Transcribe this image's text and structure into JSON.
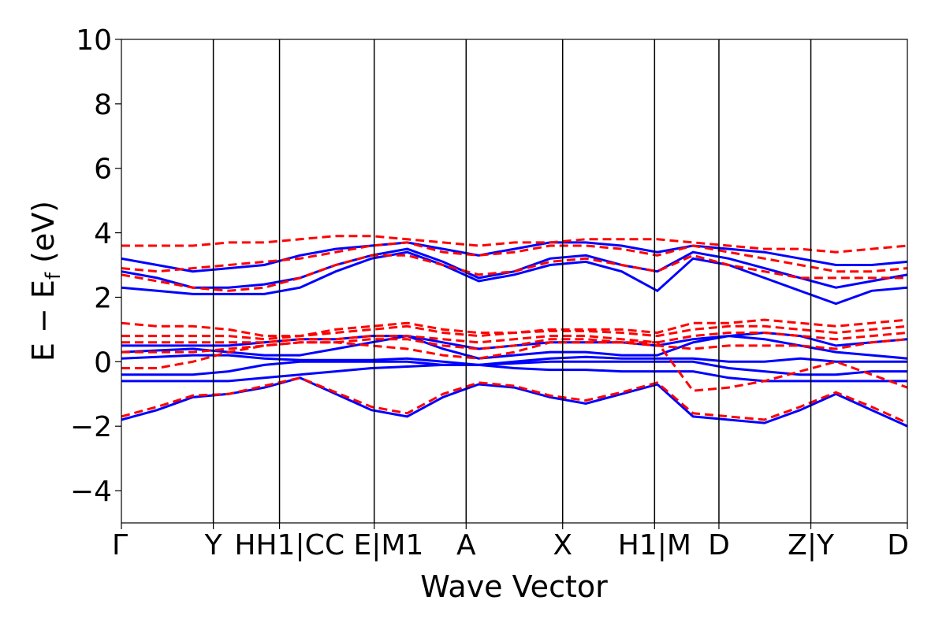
{
  "chart_data": {
    "type": "line",
    "title": "",
    "xlabel": "Wave Vector",
    "ylabel": "E − E_f (eV)",
    "ylabel_parts": {
      "main": "E − E",
      "sub": "f",
      "unit": " (eV)"
    },
    "ylim": [
      -5,
      10
    ],
    "yticks": [
      -4,
      -2,
      0,
      2,
      4,
      6,
      8,
      10
    ],
    "ytick_labels": [
      "−4",
      "−2",
      "0",
      "2",
      "4",
      "6",
      "8",
      "10"
    ],
    "kpath_x": [
      0,
      1.0,
      1.72,
      2.75,
      3.75,
      4.8,
      5.8,
      6.5,
      7.5,
      8.55
    ],
    "kpath_labels": [
      "Γ",
      "Y",
      "HH1|C",
      "C E|M1",
      "A",
      "X",
      "H1|M",
      "D",
      "Z|Y",
      "D"
    ],
    "grid": false,
    "legend": "none",
    "line_styles": {
      "series_a": "solid",
      "series_b": "dashed"
    },
    "colors": {
      "series_a": "#0000ff",
      "series_b": "#ff0000",
      "vlines": "#000000"
    },
    "series": [
      {
        "style": "solid",
        "color": "#0000ff",
        "bands": [
          [
            -1.8,
            -1.5,
            -1.1,
            -1.0,
            -0.8,
            -0.5,
            -1.0,
            -1.5,
            -1.7,
            -1.1,
            -0.7,
            -0.8,
            -1.1,
            -1.3,
            -1.0,
            -0.7,
            -1.7,
            -1.8,
            -1.9,
            -1.5,
            -1.0,
            -1.5,
            -2.0
          ],
          [
            -0.6,
            -0.6,
            -0.6,
            -0.6,
            -0.5,
            -0.4,
            -0.3,
            -0.2,
            -0.15,
            -0.1,
            -0.1,
            -0.2,
            -0.25,
            -0.25,
            -0.3,
            -0.3,
            -0.3,
            -0.5,
            -0.6,
            -0.6,
            -0.6,
            -0.6,
            -0.6
          ],
          [
            -0.4,
            -0.4,
            -0.4,
            -0.3,
            -0.1,
            0.0,
            0.0,
            0.0,
            0.0,
            -0.1,
            -0.1,
            -0.05,
            0.0,
            0.0,
            0.0,
            0.0,
            0.0,
            -0.2,
            -0.3,
            -0.4,
            -0.4,
            -0.3,
            -0.3
          ],
          [
            0.1,
            0.15,
            0.2,
            0.2,
            0.1,
            0.05,
            0.05,
            0.05,
            0.1,
            0.0,
            -0.1,
            0.0,
            0.1,
            0.15,
            0.1,
            0.1,
            0.1,
            0.0,
            0.0,
            0.1,
            0.0,
            0.0,
            0.0
          ],
          [
            0.3,
            0.35,
            0.4,
            0.3,
            0.2,
            0.2,
            0.4,
            0.6,
            0.8,
            0.4,
            0.1,
            0.2,
            0.3,
            0.3,
            0.2,
            0.2,
            0.6,
            0.8,
            0.7,
            0.5,
            0.3,
            0.2,
            0.1
          ],
          [
            0.5,
            0.5,
            0.5,
            0.5,
            0.6,
            0.7,
            0.7,
            0.8,
            0.8,
            0.6,
            0.4,
            0.5,
            0.6,
            0.6,
            0.6,
            0.5,
            0.7,
            0.8,
            0.9,
            0.8,
            0.5,
            0.6,
            0.7
          ],
          [
            2.3,
            2.2,
            2.1,
            2.1,
            2.1,
            2.3,
            2.8,
            3.2,
            3.4,
            3.0,
            2.5,
            2.7,
            3.0,
            3.1,
            2.8,
            2.2,
            3.2,
            3.0,
            2.6,
            2.2,
            1.8,
            2.2,
            2.3
          ],
          [
            2.8,
            2.6,
            2.3,
            2.3,
            2.4,
            2.6,
            3.0,
            3.3,
            3.5,
            3.1,
            2.6,
            2.8,
            3.2,
            3.3,
            3.0,
            2.8,
            3.4,
            3.2,
            2.9,
            2.6,
            2.3,
            2.5,
            2.7
          ],
          [
            3.2,
            3.0,
            2.8,
            2.9,
            3.0,
            3.3,
            3.5,
            3.6,
            3.7,
            3.5,
            3.3,
            3.5,
            3.7,
            3.7,
            3.6,
            3.4,
            3.6,
            3.5,
            3.4,
            3.2,
            3.0,
            3.0,
            3.1
          ]
        ]
      },
      {
        "style": "dashed",
        "color": "#ff0000",
        "bands": [
          [
            -1.7,
            -1.4,
            -1.05,
            -1.0,
            -0.75,
            -0.5,
            -0.95,
            -1.4,
            -1.6,
            -1.0,
            -0.65,
            -0.75,
            -1.05,
            -1.2,
            -0.95,
            -0.65,
            -1.6,
            -1.7,
            -1.8,
            -1.4,
            -0.95,
            -1.4,
            -1.9
          ],
          [
            -0.2,
            -0.2,
            0.0,
            0.3,
            0.5,
            0.6,
            0.6,
            0.5,
            0.4,
            0.2,
            0.1,
            0.3,
            0.6,
            0.6,
            0.6,
            0.6,
            -0.9,
            -0.8,
            -0.6,
            -0.3,
            0.0,
            -0.4,
            -0.8
          ],
          [
            0.3,
            0.3,
            0.3,
            0.4,
            0.5,
            0.6,
            0.6,
            0.7,
            0.7,
            0.5,
            0.4,
            0.5,
            0.7,
            0.7,
            0.6,
            0.5,
            0.4,
            0.5,
            0.5,
            0.5,
            0.4,
            0.6,
            0.7
          ],
          [
            0.6,
            0.6,
            0.6,
            0.6,
            0.6,
            0.7,
            0.7,
            0.8,
            0.8,
            0.7,
            0.6,
            0.7,
            0.8,
            0.8,
            0.7,
            0.6,
            0.8,
            0.9,
            0.9,
            0.8,
            0.7,
            0.8,
            0.9
          ],
          [
            0.8,
            0.8,
            0.8,
            0.8,
            0.7,
            0.8,
            0.9,
            1.0,
            1.1,
            0.9,
            0.8,
            0.9,
            0.95,
            0.95,
            0.9,
            0.8,
            1.0,
            1.1,
            1.1,
            1.0,
            0.9,
            1.0,
            1.1
          ],
          [
            1.2,
            1.1,
            1.1,
            1.0,
            0.8,
            0.8,
            1.0,
            1.1,
            1.2,
            1.0,
            0.9,
            0.9,
            1.0,
            1.0,
            1.0,
            0.9,
            1.2,
            1.2,
            1.3,
            1.2,
            1.1,
            1.2,
            1.3
          ],
          [
            2.7,
            2.5,
            2.3,
            2.2,
            2.3,
            2.6,
            3.0,
            3.3,
            3.3,
            3.0,
            2.7,
            2.8,
            3.1,
            3.2,
            3.0,
            2.8,
            3.3,
            3.0,
            2.8,
            2.6,
            2.6,
            2.6,
            2.6
          ],
          [
            2.9,
            2.8,
            2.9,
            3.0,
            3.1,
            3.2,
            3.4,
            3.6,
            3.7,
            3.4,
            3.3,
            3.4,
            3.6,
            3.6,
            3.5,
            3.3,
            3.6,
            3.4,
            3.2,
            3.0,
            2.8,
            2.8,
            2.9
          ],
          [
            3.6,
            3.6,
            3.6,
            3.7,
            3.7,
            3.8,
            3.9,
            3.9,
            3.8,
            3.7,
            3.6,
            3.7,
            3.7,
            3.8,
            3.8,
            3.8,
            3.7,
            3.6,
            3.5,
            3.5,
            3.4,
            3.5,
            3.6
          ]
        ]
      }
    ]
  }
}
